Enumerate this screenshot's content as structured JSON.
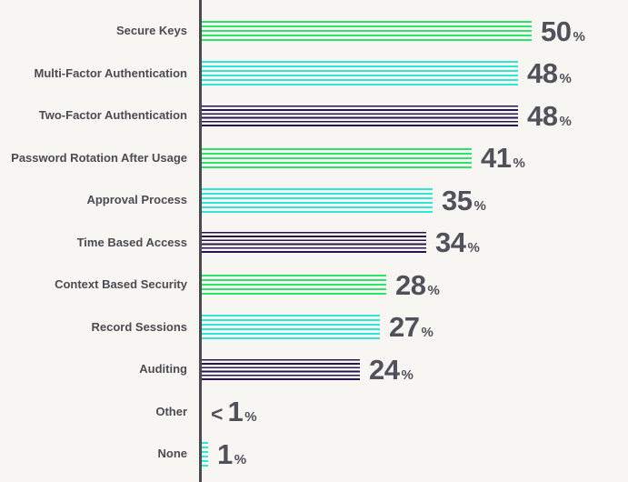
{
  "chart_data": {
    "type": "bar",
    "orientation": "horizontal",
    "title": "",
    "unit": "%",
    "xlim": [
      0,
      50
    ],
    "grid": false,
    "legend": false,
    "categories": [
      "Secure Keys",
      "Multi-Factor Authentication",
      "Two-Factor Authentication",
      "Password Rotation After Usage",
      "Approval Process",
      "Time Based Access",
      "Context Based Security",
      "Record Sessions",
      "Auditing",
      "Other",
      "None"
    ],
    "values": [
      50,
      48,
      48,
      41,
      35,
      34,
      28,
      27,
      24,
      0.5,
      1
    ],
    "value_prefixes": [
      "",
      "",
      "",
      "",
      "",
      "",
      "",
      "",
      "",
      "<",
      ""
    ],
    "value_display": [
      "50",
      "48",
      "48",
      "41",
      "35",
      "34",
      "28",
      "27",
      "24",
      "1",
      "1"
    ],
    "color_names": [
      "green",
      "cyan",
      "navy",
      "green",
      "cyan",
      "navy",
      "green",
      "cyan",
      "navy",
      "green",
      "cyan"
    ],
    "bar_shown": [
      true,
      true,
      true,
      true,
      true,
      true,
      true,
      true,
      true,
      false,
      true
    ]
  },
  "styles": {
    "background": "#F7F6F3",
    "axis_color": "#4A4A50",
    "label_color": "#4B4B52",
    "value_color": "#51515B",
    "bar_colors": {
      "green": "#2EE36C",
      "cyan": "#2FE7D4",
      "navy": "#29154D"
    }
  }
}
